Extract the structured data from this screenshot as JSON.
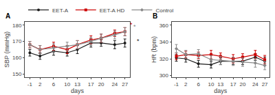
{
  "chart_data": [
    {
      "type": "line",
      "title": "A",
      "xlabel": "days",
      "ylabel": "SBP (mmHg)",
      "x": [
        -1,
        2,
        6,
        10,
        13,
        17,
        20,
        24,
        27
      ],
      "xlim": [
        -2.5,
        28.5
      ],
      "xticks": [
        -1,
        2,
        6,
        10,
        13,
        17,
        20,
        24,
        27
      ],
      "ylim": [
        148,
        182
      ],
      "yticks": [
        150,
        160,
        170,
        180
      ],
      "grid": false,
      "legend": "upper left",
      "series": [
        {
          "name": "EET-A",
          "color": "#1a1a1a",
          "marker": "circle",
          "values": [
            163,
            161,
            164,
            163,
            165,
            169,
            169,
            168,
            169
          ],
          "errors": [
            2.0,
            2.0,
            2.5,
            2.0,
            2.5,
            2.5,
            2.0,
            2.5,
            2.5
          ]
        },
        {
          "name": "EET-A HD",
          "color": "#cc0000",
          "marker": "square",
          "values": [
            168,
            165,
            167,
            165,
            168,
            171,
            172,
            175,
            176
          ],
          "errors": [
            2.0,
            2.5,
            2.5,
            2.5,
            2.5,
            2.5,
            2.5,
            2.0,
            2.5
          ]
        },
        {
          "name": "Control",
          "color": "#888888",
          "marker": "diamond",
          "values": [
            168,
            165,
            166,
            167,
            168,
            170,
            172,
            174,
            176
          ],
          "errors": [
            2.0,
            2.5,
            2.5,
            2.5,
            2.5,
            2.5,
            2.5,
            2.5,
            2.5
          ]
        }
      ],
      "annotations": [
        {
          "text": "*",
          "x": 28.0,
          "y": 177.5,
          "color": "#cc0000"
        },
        {
          "text": "*",
          "x": 28.0,
          "y": 176.3,
          "color": "#888888"
        },
        {
          "text": "*",
          "x": 28.0,
          "y": 167.5,
          "color": "#1a1a1a"
        }
      ]
    },
    {
      "type": "line",
      "title": "B",
      "xlabel": "days",
      "ylabel": "HR (bpm)",
      "x": [
        -1,
        2,
        6,
        10,
        13,
        17,
        20,
        24,
        27
      ],
      "xlim": [
        -2.5,
        28.5
      ],
      "xticks": [
        -1,
        2,
        6,
        10,
        13,
        17,
        20,
        24,
        27
      ],
      "ylim": [
        298,
        364
      ],
      "yticks": [
        300,
        320,
        340,
        360
      ],
      "grid": false,
      "legend": "upper left",
      "series": [
        {
          "name": "EET-A",
          "color": "#1a1a1a",
          "marker": "circle",
          "values": [
            321,
            320,
            314,
            313,
            317,
            317,
            317,
            322,
            317
          ],
          "errors": [
            4.0,
            4.0,
            4.0,
            4.0,
            4.0,
            4.0,
            4.0,
            4.0,
            5.0
          ]
        },
        {
          "name": "EET-A HD",
          "color": "#cc0000",
          "marker": "square",
          "values": [
            323,
            325,
            324,
            325,
            323,
            320,
            322,
            325,
            319
          ],
          "errors": [
            4.0,
            4.0,
            4.0,
            5.0,
            4.0,
            5.0,
            4.0,
            5.0,
            5.0
          ]
        },
        {
          "name": "Control",
          "color": "#888888",
          "marker": "diamond",
          "values": [
            332,
            325,
            326,
            319,
            318,
            317,
            316,
            315,
            312
          ],
          "errors": [
            5.0,
            5.0,
            5.0,
            5.0,
            5.0,
            5.0,
            5.0,
            5.0,
            5.0
          ]
        }
      ]
    }
  ]
}
